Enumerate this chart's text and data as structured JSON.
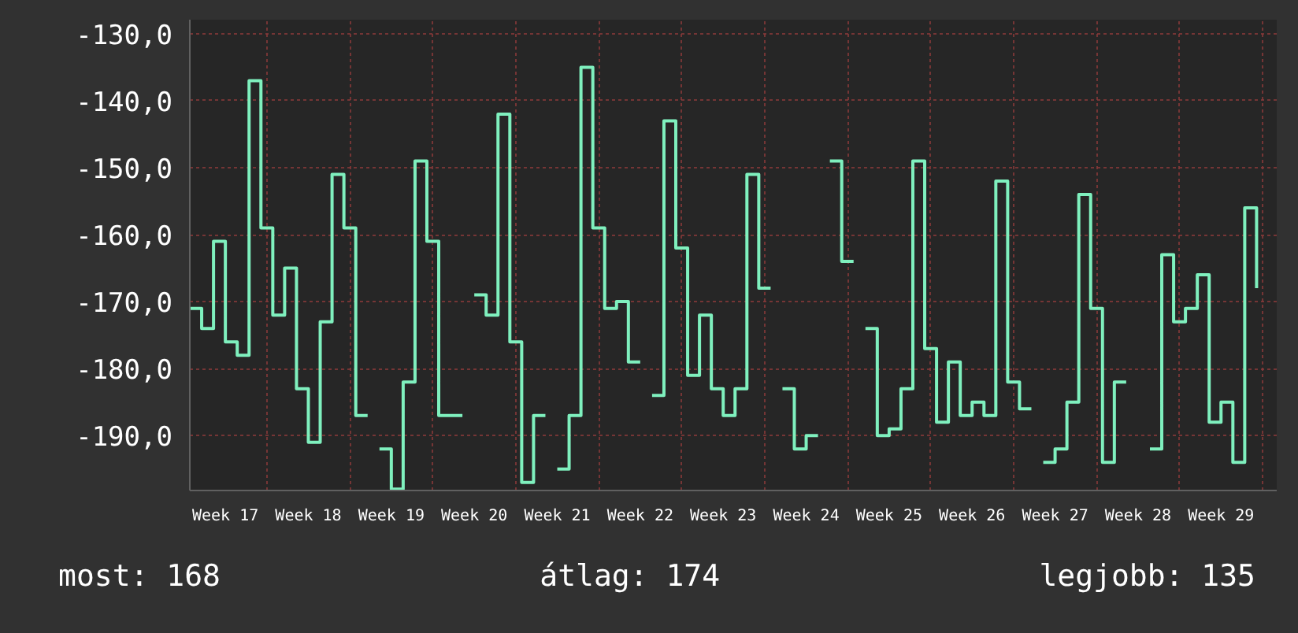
{
  "chart_data": {
    "type": "step",
    "color": "#7ff0be",
    "categories": [
      null,
      null,
      null,
      "Week 17",
      null,
      null,
      null,
      null,
      null,
      null,
      "Week 18",
      null,
      null,
      null,
      null,
      null,
      null,
      "Week 19",
      null,
      null,
      null,
      null,
      null,
      null,
      "Week 20",
      null,
      null,
      null,
      null,
      null,
      null,
      "Week 21",
      null,
      null,
      null,
      null,
      null,
      null,
      "Week 22",
      null,
      null,
      null,
      null,
      null,
      null,
      "Week 23",
      null,
      null,
      null,
      null,
      null,
      null,
      "Week 24",
      null,
      null,
      null,
      null,
      null,
      null,
      "Week 25",
      null,
      null,
      null,
      null,
      null,
      null,
      "Week 26",
      null,
      null,
      null,
      null,
      null,
      null,
      "Week 27",
      null,
      null,
      null,
      null,
      null,
      null,
      "Week 28",
      null,
      null,
      null,
      null,
      null,
      null,
      "Week 29",
      null,
      null,
      null
    ],
    "values": [
      -171,
      -174,
      -161,
      -176,
      -178,
      -137,
      -159,
      -172,
      -165,
      -183,
      -191,
      -173,
      -151,
      -159,
      -187,
      null,
      -192,
      -198,
      -182,
      -149,
      -161,
      -187,
      -187,
      null,
      -169,
      -172,
      -142,
      -176,
      -197,
      -187,
      null,
      -195,
      -187,
      -135,
      -159,
      -171,
      -170,
      -179,
      null,
      -184,
      -143,
      -162,
      -181,
      -172,
      -183,
      -187,
      -183,
      -151,
      -168,
      null,
      -183,
      -192,
      -190,
      null,
      -149,
      -164,
      null,
      -174,
      -190,
      -189,
      -183,
      -149,
      -177,
      -188,
      -179,
      -187,
      -185,
      -187,
      -152,
      -182,
      -186,
      null,
      -194,
      -192,
      -185,
      -154,
      -171,
      -194,
      -182,
      null,
      null,
      -192,
      -163,
      -173,
      -171,
      -166,
      -188,
      -185,
      -194,
      -156,
      -168
    ],
    "ylim": [
      -198.2,
      -127.9
    ],
    "yticks": [
      {
        "value": -130,
        "label": "-130,0"
      },
      {
        "value": -140,
        "label": "-140,0"
      },
      {
        "value": -150,
        "label": "-150,0"
      },
      {
        "value": -160,
        "label": "-160,0"
      },
      {
        "value": -170,
        "label": "-170,0"
      },
      {
        "value": -180,
        "label": "-180,0"
      },
      {
        "value": -190,
        "label": "-190,0"
      }
    ],
    "grid": true,
    "annotations": [
      "most: 168",
      "átlag: 174",
      "legjobb: 135"
    ]
  }
}
